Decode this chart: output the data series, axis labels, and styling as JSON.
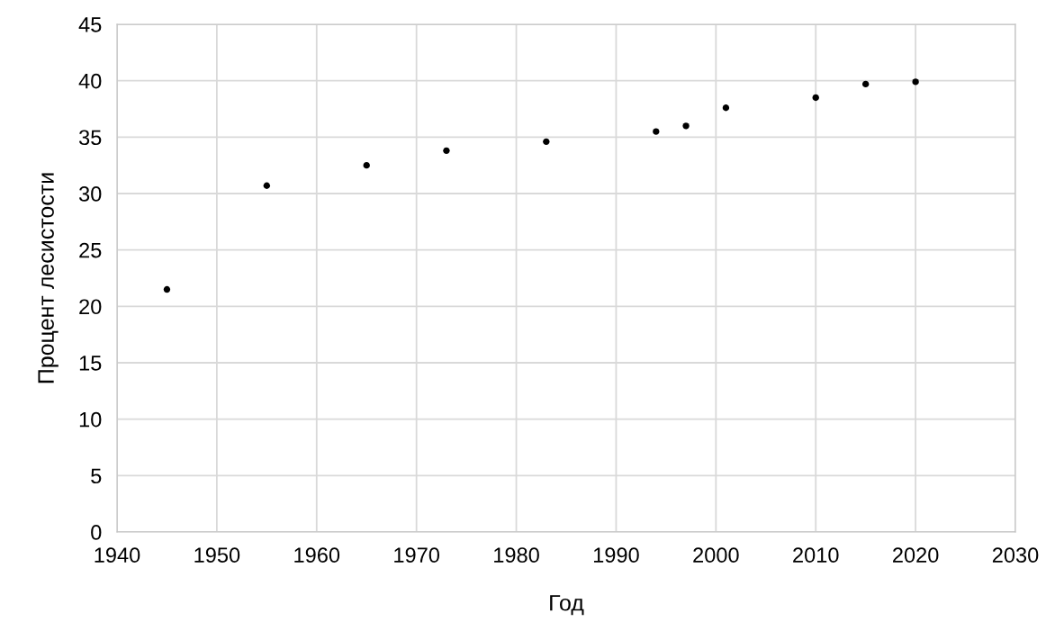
{
  "chart_data": {
    "type": "scatter",
    "xlabel": "Год",
    "ylabel": "Процент лесистости",
    "x": [
      1945,
      1955,
      1965,
      1973,
      1983,
      1994,
      1997,
      2001,
      2010,
      2015,
      2020
    ],
    "values": [
      21.5,
      30.7,
      32.5,
      33.8,
      34.6,
      35.5,
      36.0,
      37.6,
      38.5,
      39.7,
      39.9
    ],
    "color": "#000000",
    "marker": "circle",
    "xlim": [
      1940,
      2030
    ],
    "xticks": [
      1940,
      1950,
      1960,
      1970,
      1980,
      1990,
      2000,
      2010,
      2020,
      2030
    ],
    "ylim": [
      0,
      45
    ],
    "yticks": [
      0,
      5,
      10,
      15,
      20,
      25,
      30,
      35,
      40,
      45
    ],
    "grid": true,
    "legend": false
  }
}
